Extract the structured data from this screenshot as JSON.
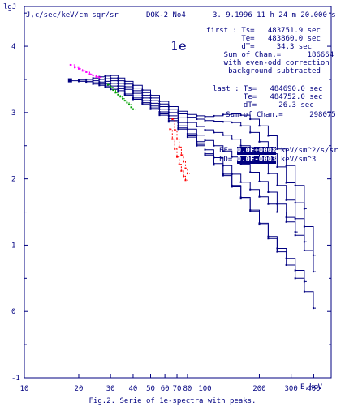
{
  "chart_data": {
    "type": "line",
    "title": "",
    "ylabel": "lgJ",
    "yunits": "J,c/sec/keV/cm sqr/sr",
    "xlabel": "E,keV",
    "xscale": "log",
    "xlim": [
      10,
      500
    ],
    "ylim": [
      -1,
      4.6
    ],
    "yticks": [
      "-1",
      "0",
      "1",
      "2",
      "3",
      "4"
    ],
    "xticks": [
      "10",
      "20",
      "30",
      "40",
      "50",
      "60",
      "70",
      "80",
      "100",
      "200",
      "300",
      "400"
    ],
    "grid": false,
    "series": [
      {
        "color": "#000080",
        "x": [
          18,
          20,
          22,
          24,
          26,
          28,
          30,
          33,
          36,
          40,
          45,
          50,
          56,
          63,
          71,
          80,
          90,
          100,
          112,
          126,
          141,
          158,
          178,
          200,
          224,
          251,
          282,
          316,
          355,
          398
        ],
        "y": [
          3.48,
          3.47,
          3.45,
          3.43,
          3.41,
          3.38,
          3.35,
          3.31,
          3.26,
          3.2,
          3.13,
          3.05,
          2.96,
          2.86,
          2.75,
          2.63,
          2.5,
          2.36,
          2.21,
          2.05,
          1.88,
          1.7,
          1.51,
          1.31,
          1.1,
          0.9,
          0.7,
          0.5,
          0.3,
          0.05
        ]
      },
      {
        "color": "#000080",
        "x": [
          20,
          22,
          24,
          26,
          28,
          30,
          33,
          36,
          40,
          45,
          50,
          56,
          63,
          71,
          80,
          90,
          100,
          112,
          126,
          141,
          158,
          178,
          200,
          224,
          251,
          282,
          316,
          355
        ],
        "y": [
          3.49,
          3.47,
          3.45,
          3.43,
          3.4,
          3.37,
          3.33,
          3.28,
          3.22,
          3.15,
          3.07,
          2.98,
          2.88,
          2.77,
          2.65,
          2.52,
          2.38,
          2.23,
          2.07,
          1.9,
          1.72,
          1.53,
          1.33,
          1.13,
          0.95,
          0.8,
          0.62,
          0.45
        ]
      },
      {
        "color": "#000080",
        "x": [
          22,
          24,
          26,
          28,
          30,
          33,
          36,
          40,
          45,
          50,
          56,
          63,
          71,
          80,
          90,
          100,
          112,
          126,
          141,
          158,
          178,
          200,
          224,
          251,
          282,
          316,
          355,
          398
        ],
        "y": [
          3.5,
          3.48,
          3.46,
          3.43,
          3.4,
          3.36,
          3.31,
          3.25,
          3.18,
          3.1,
          3.01,
          2.91,
          2.8,
          2.68,
          2.56,
          2.44,
          2.32,
          2.2,
          2.07,
          1.95,
          1.84,
          1.73,
          1.62,
          1.5,
          1.35,
          1.15,
          0.92,
          0.6
        ]
      },
      {
        "color": "#000080",
        "x": [
          24,
          26,
          28,
          30,
          33,
          36,
          40,
          45,
          50,
          56,
          63,
          71,
          80,
          90,
          100,
          112,
          126,
          141,
          158,
          178,
          200,
          224,
          251,
          282,
          316
        ],
        "y": [
          3.52,
          3.5,
          3.47,
          3.44,
          3.4,
          3.35,
          3.29,
          3.22,
          3.14,
          3.05,
          2.95,
          2.85,
          2.75,
          2.66,
          2.58,
          2.5,
          2.42,
          2.33,
          2.22,
          2.1,
          1.96,
          1.8,
          1.62,
          1.42,
          1.2
        ]
      },
      {
        "color": "#000080",
        "x": [
          26,
          28,
          30,
          33,
          36,
          40,
          45,
          50,
          56,
          63,
          71,
          80,
          90,
          100,
          112,
          126,
          141,
          158,
          178,
          200,
          224,
          251,
          282,
          316,
          355
        ],
        "y": [
          3.54,
          3.51,
          3.48,
          3.44,
          3.39,
          3.33,
          3.26,
          3.18,
          3.09,
          3.0,
          2.92,
          2.85,
          2.79,
          2.74,
          2.7,
          2.66,
          2.6,
          2.5,
          2.38,
          2.24,
          2.08,
          1.9,
          1.68,
          1.4,
          1.05
        ]
      },
      {
        "color": "#000080",
        "x": [
          28,
          30,
          33,
          36,
          40,
          45,
          50,
          56,
          63,
          71,
          80,
          90,
          100,
          112,
          126,
          141,
          158,
          178,
          200,
          224,
          251,
          282,
          316,
          355,
          398
        ],
        "y": [
          3.55,
          3.52,
          3.48,
          3.43,
          3.37,
          3.3,
          3.22,
          3.13,
          3.05,
          2.98,
          2.93,
          2.9,
          2.88,
          2.87,
          2.86,
          2.85,
          2.8,
          2.7,
          2.56,
          2.38,
          2.18,
          1.94,
          1.64,
          1.28,
          0.85
        ]
      },
      {
        "color": "#000080",
        "x": [
          30,
          33,
          36,
          40,
          45,
          50,
          56,
          63,
          71,
          80,
          90,
          100,
          112,
          126,
          141,
          158,
          178,
          200,
          224,
          251,
          282,
          316,
          355
        ],
        "y": [
          3.56,
          3.52,
          3.47,
          3.41,
          3.34,
          3.26,
          3.17,
          3.09,
          3.02,
          2.97,
          2.95,
          2.94,
          2.95,
          2.97,
          2.98,
          2.96,
          2.9,
          2.8,
          2.65,
          2.45,
          2.2,
          1.9,
          1.55
        ]
      },
      {
        "color": "#ff00ff",
        "dashed": true,
        "x": [
          18,
          19,
          20,
          21,
          22,
          23,
          24,
          25,
          26
        ],
        "y": [
          3.72,
          3.68,
          3.66,
          3.63,
          3.61,
          3.58,
          3.56,
          3.54,
          3.53
        ]
      },
      {
        "color": "#00a000",
        "dashed": true,
        "x": [
          29,
          30,
          31,
          32,
          33,
          34,
          35,
          36,
          37,
          38,
          39,
          40
        ],
        "y": [
          3.42,
          3.38,
          3.34,
          3.3,
          3.27,
          3.24,
          3.21,
          3.18,
          3.15,
          3.12,
          3.08,
          3.05
        ]
      },
      {
        "color": "#ff0000",
        "dashed": true,
        "x": [
          66,
          68,
          70,
          72,
          74,
          76,
          78,
          80
        ],
        "y": [
          2.9,
          2.74,
          2.6,
          2.48,
          2.36,
          2.26,
          2.16,
          2.08
        ]
      },
      {
        "color": "#ff0000",
        "dashed": true,
        "x": [
          64,
          66,
          68,
          70,
          72,
          74,
          76,
          78
        ],
        "y": [
          2.75,
          2.6,
          2.45,
          2.33,
          2.22,
          2.12,
          2.04,
          1.98
        ]
      }
    ]
  },
  "header": {
    "units": "J,c/sec/keV/cm sqr/sr",
    "instrument": "DOK-2 No4",
    "datetime": "3. 9.1996 11 h 24 m 20.000 s",
    "axis_label": "lgJ"
  },
  "label_1e": "1e",
  "info_first": {
    "line1": "first : Ts=   483751.9 sec",
    "line2": "        Te=   483860.0 sec",
    "line3": "        dT=     34.3 sec",
    "line4": "    Sum of Chan.=      186664",
    "line5": "    with even-odd correction",
    "line6": "     background subtracted"
  },
  "info_last": {
    "line1": "last : Ts=   484690.0 sec",
    "line2": "       Te=   484752.0 sec",
    "line3": "       dT=     26.3 sec",
    "line4": "   Sum of Chan.=      298075"
  },
  "ef": {
    "ef_prefix": "EF= ",
    "ef_value": "0.0E+0008",
    "ef_units": " keV/sm^2/s/sr",
    "ed_prefix": "ED= ",
    "ed_value": "0.0E-0003",
    "ed_units": " keV/sm^3"
  },
  "caption": "Fig.2. Serie of 1e-spectra with peaks."
}
